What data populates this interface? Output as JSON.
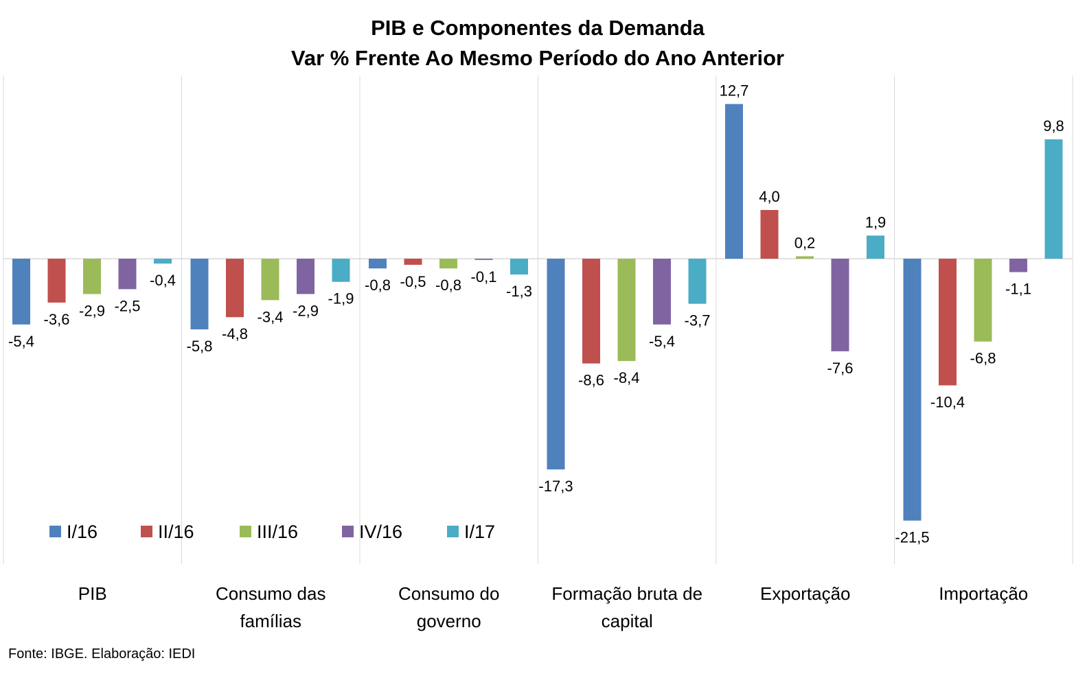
{
  "chart_data": {
    "type": "bar",
    "title": "PIB e Componentes da Demanda",
    "subtitle": "Var % Frente Ao Mesmo Período do Ano Anterior",
    "categories": [
      "PIB",
      "Consumo das famílias",
      "Consumo do governo",
      "Formação bruta de capital",
      "Exportação",
      "Importação"
    ],
    "category_label_lines": [
      [
        "PIB"
      ],
      [
        "Consumo das",
        "famílias"
      ],
      [
        "Consumo do",
        "governo"
      ],
      [
        "Formação bruta de",
        "capital"
      ],
      [
        "Exportação"
      ],
      [
        "Importação"
      ]
    ],
    "series": [
      {
        "name": "I/16",
        "color": "#4F81BD",
        "values": [
          -5.4,
          -5.8,
          -0.8,
          -17.3,
          12.7,
          -21.5
        ],
        "labels": [
          "-5,4",
          "-5,8",
          "-0,8",
          "-17,3",
          "12,7",
          "-21,5"
        ]
      },
      {
        "name": "II/16",
        "color": "#C0504D",
        "values": [
          -3.6,
          -4.8,
          -0.5,
          -8.6,
          4.0,
          -10.4
        ],
        "labels": [
          "-3,6",
          "-4,8",
          "-0,5",
          "-8,6",
          "4,0",
          "-10,4"
        ]
      },
      {
        "name": "III/16",
        "color": "#9BBB59",
        "values": [
          -2.9,
          -3.4,
          -0.8,
          -8.4,
          0.2,
          -6.8
        ],
        "labels": [
          "-2,9",
          "-3,4",
          "-0,8",
          "-8,4",
          "0,2",
          "-6,8"
        ]
      },
      {
        "name": "IV/16",
        "color": "#8064A2",
        "values": [
          -2.5,
          -2.9,
          -0.1,
          -5.4,
          -7.6,
          -1.1
        ],
        "labels": [
          "-2,5",
          "-2,9",
          "-0,1",
          "-5,4",
          "-7,6",
          "-1,1"
        ]
      },
      {
        "name": "I/17",
        "color": "#4BACC6",
        "values": [
          -0.4,
          -1.9,
          -1.3,
          -3.7,
          1.9,
          9.8
        ],
        "labels": [
          "-0,4",
          "-1,9",
          "-1,3",
          "-3,7",
          "1,9",
          "9,8"
        ]
      }
    ],
    "ylim": [
      -25,
      15
    ],
    "legend_position": "bottom-left",
    "grid": "vertical category separators"
  },
  "source_note": "Fonte: IBGE. Elaboração: IEDI"
}
